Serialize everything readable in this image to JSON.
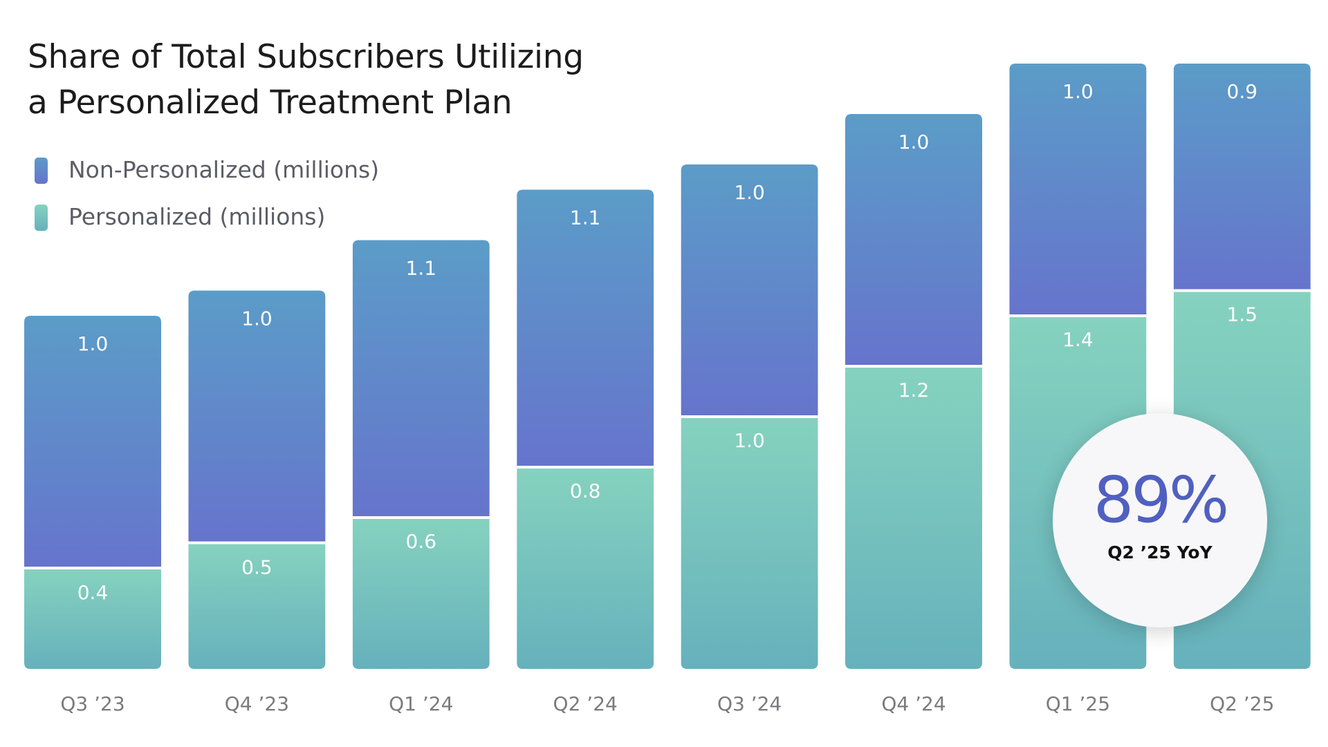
{
  "title_lines": [
    "Share of Total Subscribers Utilizing",
    "a Personalized Treatment Plan"
  ],
  "legend": [
    {
      "label": "Non-Personalized (millions)",
      "color": "#5e7fd1"
    },
    {
      "label": "Personalized (millions)",
      "color": "#7fd3c0"
    }
  ],
  "badge": {
    "value": "89%",
    "label": "Q2 ’25 YoY"
  },
  "chart_data": {
    "type": "bar",
    "stacked": true,
    "title": "Share of Total Subscribers Utilizing a Personalized Treatment Plan",
    "categories": [
      "Q3 ’23",
      "Q4 ’23",
      "Q1 ’24",
      "Q2 ’24",
      "Q3 ’24",
      "Q4 ’24",
      "Q1 ’25",
      "Q2 ’25"
    ],
    "series": [
      {
        "name": "Personalized (millions)",
        "values": [
          0.4,
          0.5,
          0.6,
          0.8,
          1.0,
          1.2,
          1.4,
          1.5
        ],
        "labels": [
          "0.4",
          "0.5",
          "0.6",
          "0.8",
          "1.0",
          "1.2",
          "1.4",
          "1.5"
        ],
        "color_top": "#86d2bf",
        "color_bottom": "#66b1bc"
      },
      {
        "name": "Non-Personalized (millions)",
        "values": [
          1.0,
          1.0,
          1.1,
          1.1,
          1.0,
          1.0,
          1.0,
          0.9
        ],
        "labels": [
          "1.0",
          "1.0",
          "1.1",
          "1.1",
          "1.0",
          "1.0",
          "1.0",
          "0.9"
        ],
        "color_top": "#5b9cc8",
        "color_bottom": "#6674cc"
      }
    ],
    "grid": false,
    "legend_position": "top-left",
    "annotations": [
      {
        "text": "89%",
        "subtext": "Q2 ’25 YoY",
        "category": "Q2 ’25"
      }
    ]
  }
}
